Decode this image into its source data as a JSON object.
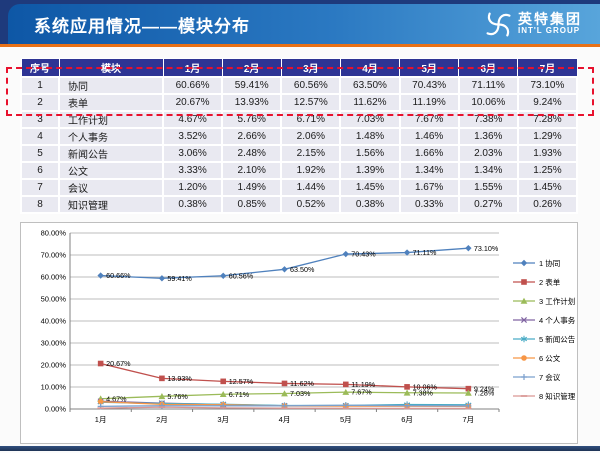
{
  "header": {
    "title": "系统应用情况——模块分布",
    "logo": {
      "name": "英特集团",
      "subtitle": "INT'L GROUP"
    }
  },
  "table": {
    "columns": [
      "序号",
      "模块",
      "1月",
      "2月",
      "3月",
      "4月",
      "5月",
      "6月",
      "7月"
    ],
    "rows": [
      {
        "no": "1",
        "module": "协同",
        "values": [
          "60.66%",
          "59.41%",
          "60.56%",
          "63.50%",
          "70.43%",
          "71.11%",
          "73.10%"
        ]
      },
      {
        "no": "2",
        "module": "表单",
        "values": [
          "20.67%",
          "13.93%",
          "12.57%",
          "11.62%",
          "11.19%",
          "10.06%",
          "9.24%"
        ]
      },
      {
        "no": "3",
        "module": "工作计划",
        "values": [
          "4.67%",
          "5.76%",
          "6.71%",
          "7.03%",
          "7.67%",
          "7.38%",
          "7.28%"
        ]
      },
      {
        "no": "4",
        "module": "个人事务",
        "values": [
          "3.52%",
          "2.66%",
          "2.06%",
          "1.48%",
          "1.46%",
          "1.36%",
          "1.29%"
        ]
      },
      {
        "no": "5",
        "module": "新闻公告",
        "values": [
          "3.06%",
          "2.48%",
          "2.15%",
          "1.56%",
          "1.66%",
          "2.03%",
          "1.93%"
        ]
      },
      {
        "no": "6",
        "module": "公文",
        "values": [
          "3.33%",
          "2.10%",
          "1.92%",
          "1.39%",
          "1.34%",
          "1.34%",
          "1.25%"
        ]
      },
      {
        "no": "7",
        "module": "会议",
        "values": [
          "1.20%",
          "1.49%",
          "1.44%",
          "1.45%",
          "1.67%",
          "1.55%",
          "1.45%"
        ]
      },
      {
        "no": "8",
        "module": "知识管理",
        "values": [
          "0.38%",
          "0.85%",
          "0.52%",
          "0.38%",
          "0.33%",
          "0.27%",
          "0.26%"
        ]
      }
    ]
  },
  "chart_data": {
    "type": "line",
    "x": [
      "1月",
      "2月",
      "3月",
      "4月",
      "5月",
      "6月",
      "7月"
    ],
    "series": [
      {
        "name": "1 协同",
        "values": [
          60.66,
          59.41,
          60.56,
          63.5,
          70.43,
          71.11,
          73.1
        ],
        "color": "#4F81BD",
        "marker": "diamond",
        "labels": true
      },
      {
        "name": "2 表单",
        "values": [
          20.67,
          13.93,
          12.57,
          11.62,
          11.19,
          10.06,
          9.24
        ],
        "color": "#C0504D",
        "marker": "square",
        "labels": true
      },
      {
        "name": "3 工作计划",
        "values": [
          4.67,
          5.76,
          6.71,
          7.03,
          7.67,
          7.38,
          7.28
        ],
        "color": "#9BBB59",
        "marker": "triangle",
        "labels": true
      },
      {
        "name": "4 个人事务",
        "values": [
          3.52,
          2.66,
          2.06,
          1.48,
          1.46,
          1.36,
          1.29
        ],
        "color": "#8064A2",
        "marker": "x",
        "labels": false
      },
      {
        "name": "5 新闻公告",
        "values": [
          3.06,
          2.48,
          2.15,
          1.56,
          1.66,
          2.03,
          1.93
        ],
        "color": "#4BACC6",
        "marker": "asterisk",
        "labels": false
      },
      {
        "name": "6 公文",
        "values": [
          3.33,
          2.1,
          1.92,
          1.39,
          1.34,
          1.34,
          1.25
        ],
        "color": "#F79646",
        "marker": "circle",
        "labels": false
      },
      {
        "name": "7 会议",
        "values": [
          1.2,
          1.49,
          1.44,
          1.45,
          1.67,
          1.55,
          1.45
        ],
        "color": "#7BA0CD",
        "marker": "plus",
        "labels": false
      },
      {
        "name": "8 知识管理",
        "values": [
          0.38,
          0.85,
          0.52,
          0.38,
          0.33,
          0.27,
          0.26
        ],
        "color": "#D99694",
        "marker": "dash",
        "labels": false
      }
    ],
    "title": "",
    "xlabel": "",
    "ylabel": "",
    "ylim": [
      0,
      80
    ],
    "ytick_step": 10,
    "yticks": [
      "0.00%",
      "10.00%",
      "20.00%",
      "30.00%",
      "40.00%",
      "50.00%",
      "60.00%",
      "70.00%",
      "80.00%"
    ],
    "grid": true,
    "legend_position": "right"
  }
}
